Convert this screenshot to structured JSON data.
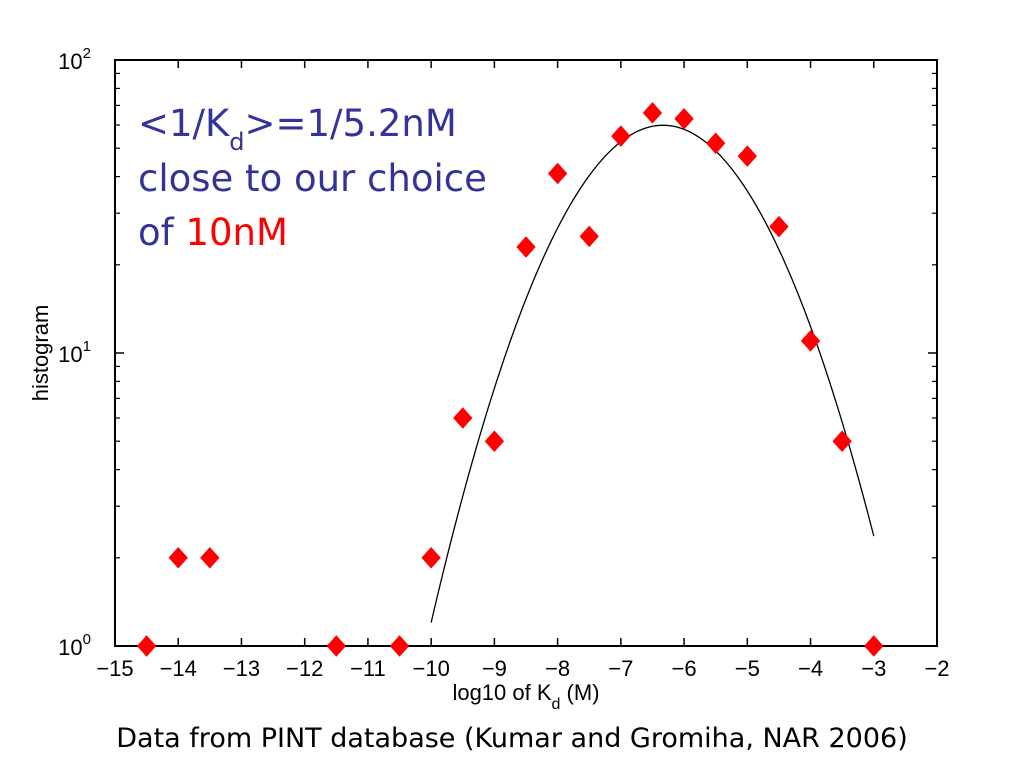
{
  "chart_data": {
    "type": "scatter",
    "xlabel_prefix": "log10 of K",
    "xlabel_sub": "d",
    "xlabel_suffix": " (M)",
    "ylabel": "histogram",
    "xlim": [
      -15,
      -2
    ],
    "ylim": [
      1,
      100
    ],
    "yscale": "log",
    "grid": false,
    "x_ticks": [
      -15,
      -14,
      -13,
      -12,
      -11,
      -10,
      -9,
      -8,
      -7,
      -6,
      -5,
      -4,
      -3,
      -2
    ],
    "x_tick_labels": [
      "−15",
      "−14",
      "−13",
      "−12",
      "−11",
      "−10",
      "−9",
      "−8",
      "−7",
      "−6",
      "−5",
      "−4",
      "−3",
      "−2"
    ],
    "y_ticks": [
      1,
      10,
      100
    ],
    "y_tick_bases": [
      "10",
      "10",
      "10"
    ],
    "y_tick_exponents": [
      "0",
      "1",
      "2"
    ],
    "series": [
      {
        "kind": "points",
        "marker": "diamond",
        "color": "#ff0000",
        "x": [
          -14.5,
          -14,
          -13.5,
          -11.5,
          -10.5,
          -10,
          -9.5,
          -9,
          -8.5,
          -8,
          -7.5,
          -7,
          -6.5,
          -6,
          -5.5,
          -5,
          -4.5,
          -4,
          -3.5,
          -3
        ],
        "y": [
          1,
          2,
          2,
          1,
          1,
          2,
          6,
          5,
          23,
          41,
          25,
          55,
          66,
          63,
          52,
          47,
          27,
          11,
          5,
          1
        ]
      },
      {
        "kind": "fit",
        "style": "line",
        "color": "#000000",
        "x_range": [
          -10,
          -3
        ],
        "peak_x": -6.3,
        "peak_y": 66,
        "x": [
          -10,
          -9.5,
          -9,
          -8.5,
          -8,
          -7.5,
          -7,
          -6.5,
          -6,
          -5.5,
          -5,
          -4.5,
          -4,
          -3.5,
          -3
        ],
        "y": [
          1.55,
          3.1,
          6.5,
          13,
          24,
          39,
          54,
          64,
          65,
          55,
          39,
          23,
          11,
          5.1,
          2.5
        ]
      }
    ],
    "annotation": {
      "line1_prefix": "<1/K",
      "line1_sub": "d",
      "line1_suffix": ">=1/5.2nM",
      "line2": "close to our choice",
      "line3_prefix": "of ",
      "line3_highlight": "10nM",
      "color": "#333399",
      "highlight_color": "#ff0000"
    }
  },
  "caption": "Data from PINT database (Kumar and Gromiha, NAR 2006)"
}
